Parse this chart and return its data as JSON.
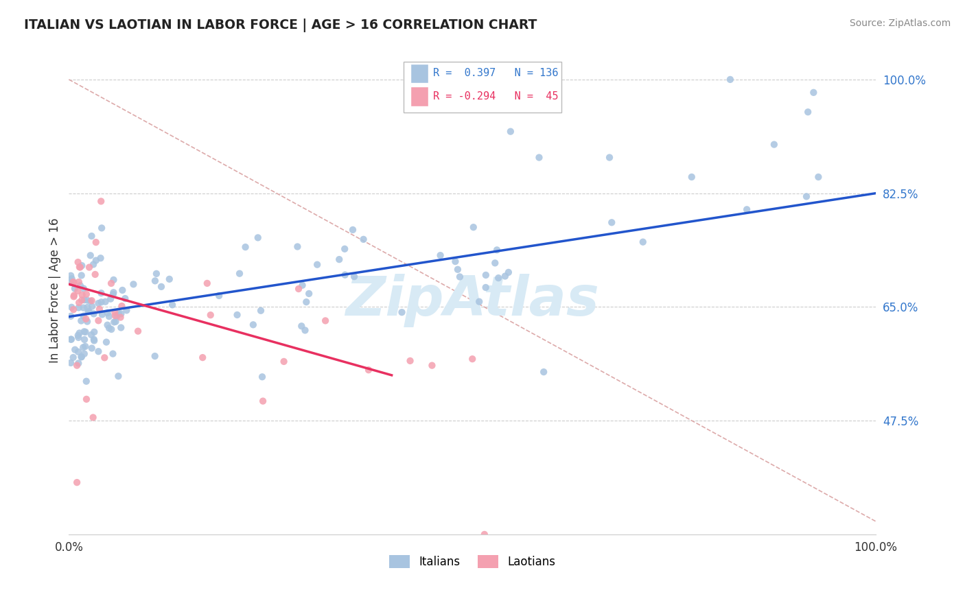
{
  "title": "ITALIAN VS LAOTIAN IN LABOR FORCE | AGE > 16 CORRELATION CHART",
  "source": "Source: ZipAtlas.com",
  "xlabel_ticks": [
    "0.0%",
    "100.0%"
  ],
  "ylabel_label": "In Labor Force | Age > 16",
  "ylabel_ticks_vals": [
    0.475,
    0.65,
    0.825,
    1.0
  ],
  "ylabel_ticks_labels": [
    "47.5%",
    "65.0%",
    "82.5%",
    "100.0%"
  ],
  "legend_italian": {
    "R": "0.397",
    "N": "136"
  },
  "legend_laotian": {
    "R": "-0.294",
    "N": "45"
  },
  "italian_color": "#a8c4e0",
  "laotian_color": "#f4a0b0",
  "italian_line_color": "#2255cc",
  "laotian_line_color": "#e83060",
  "dashed_line_color": "#ddaaaa",
  "watermark": "ZipAtlas",
  "watermark_color": "#d8eaf5",
  "xmin": 0.0,
  "xmax": 1.0,
  "ymin": 0.3,
  "ymax": 1.05,
  "italian_line": {
    "x0": 0.0,
    "y0": 0.635,
    "x1": 1.0,
    "y1": 0.825
  },
  "laotian_line": {
    "x0": 0.0,
    "y0": 0.685,
    "x1": 0.4,
    "y1": 0.545
  },
  "dashed_line": {
    "x0": 0.0,
    "y0": 1.0,
    "x1": 1.0,
    "y1": 0.32
  }
}
